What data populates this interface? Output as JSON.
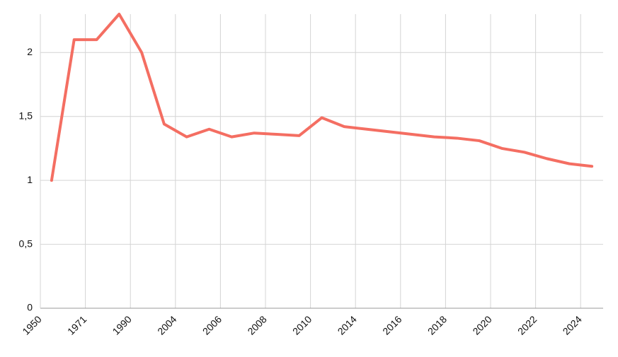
{
  "chart_data": {
    "type": "line",
    "categories": [
      "1950",
      null,
      "1971",
      null,
      "1990",
      null,
      "2004",
      null,
      "2006",
      null,
      "2008",
      null,
      "2010",
      null,
      "2014",
      null,
      "2016",
      null,
      "2018",
      null,
      "2020",
      null,
      "2022",
      null,
      "2024"
    ],
    "series": [
      {
        "color": "#f46e62",
        "values": [
          1.0,
          2.1,
          2.1,
          2.3,
          2.0,
          1.44,
          1.34,
          1.4,
          1.34,
          1.37,
          1.36,
          1.35,
          1.49,
          1.42,
          1.4,
          1.38,
          1.36,
          1.34,
          1.33,
          1.31,
          1.25,
          1.22,
          1.17,
          1.13,
          1.11
        ]
      }
    ],
    "ylim": [
      0,
      2.3
    ],
    "yticks": [
      0,
      {
        "value": 0.5,
        "label": "0,5"
      },
      1,
      {
        "value": 1.5,
        "label": "1,5"
      },
      2
    ],
    "grid": true
  }
}
